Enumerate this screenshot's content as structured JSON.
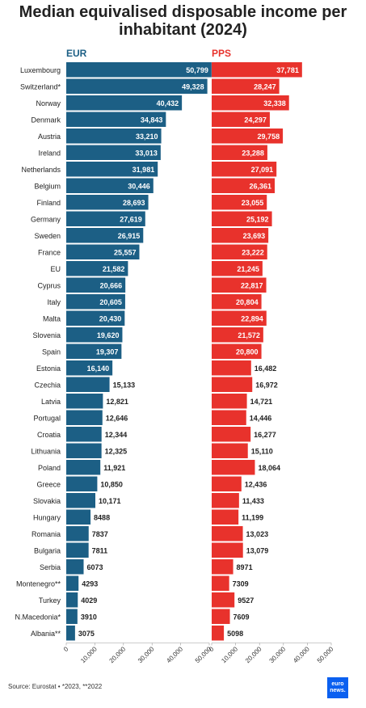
{
  "title": "Median equivalised disposable income per inhabitant (2024)",
  "source": "Source: Eurostat • *2023, **2022",
  "logo_text": "euro news.",
  "colors": {
    "eur": "#1c5f85",
    "pps": "#e8322c",
    "logo": "#0b60f0"
  },
  "chart_data": [
    {
      "type": "bar",
      "orientation": "horizontal",
      "panel_label": "EUR",
      "xlim": [
        0,
        50000
      ],
      "xticks": [
        "0",
        "10,000",
        "20,000",
        "30,000",
        "40,000",
        "50,000"
      ],
      "categories": [
        "Luxembourg",
        "Switzerland*",
        "Norway",
        "Denmark",
        "Austria",
        "Ireland",
        "Netherlands",
        "Belgium",
        "Finland",
        "Germany",
        "Sweden",
        "France",
        "EU",
        "Cyprus",
        "Italy",
        "Malta",
        "Slovenia",
        "Spain",
        "Estonia",
        "Czechia",
        "Latvia",
        "Portugal",
        "Croatia",
        "Lithuania",
        "Poland",
        "Greece",
        "Slovakia",
        "Hungary",
        "Romania",
        "Bulgaria",
        "Serbia",
        "Montenegro**",
        "Turkey",
        "N.Macedonia*",
        "Albania**"
      ],
      "values": [
        50799,
        49328,
        40432,
        34843,
        33210,
        33013,
        31981,
        30446,
        28693,
        27619,
        26915,
        25557,
        21582,
        20666,
        20605,
        20430,
        19620,
        19307,
        16140,
        15133,
        12821,
        12646,
        12344,
        12325,
        11921,
        10850,
        10171,
        8488,
        7837,
        7811,
        6073,
        4293,
        4029,
        3910,
        3075
      ],
      "labels": [
        "50,799",
        "49,328",
        "40,432",
        "34,843",
        "33,210",
        "33,013",
        "31,981",
        "30,446",
        "28,693",
        "27,619",
        "26,915",
        "25,557",
        "21,582",
        "20,666",
        "20,605",
        "20,430",
        "19,620",
        "19,307",
        "16,140",
        "15,133",
        "12,821",
        "12,646",
        "12,344",
        "12,325",
        "11,921",
        "10,850",
        "10,171",
        "8488",
        "7837",
        "7811",
        "6073",
        "4293",
        "4029",
        "3910",
        "3075"
      ]
    },
    {
      "type": "bar",
      "orientation": "horizontal",
      "panel_label": "PPS",
      "xlim": [
        0,
        50000
      ],
      "xticks": [
        "0",
        "10,000",
        "20,000",
        "30,000",
        "40,000",
        "50,000"
      ],
      "values": [
        37781,
        28247,
        32338,
        24297,
        29758,
        23288,
        27091,
        26361,
        23055,
        25192,
        23693,
        23222,
        21245,
        22817,
        20804,
        22894,
        21572,
        20800,
        16482,
        16972,
        14721,
        14446,
        16277,
        15110,
        18064,
        12436,
        11433,
        11199,
        13023,
        13079,
        8971,
        7309,
        9527,
        7609,
        5098
      ],
      "labels": [
        "37,781",
        "28,247",
        "32,338",
        "24,297",
        "29,758",
        "23,288",
        "27,091",
        "26,361",
        "23,055",
        "25,192",
        "23,693",
        "23,222",
        "21,245",
        "22,817",
        "20,804",
        "22,894",
        "21,572",
        "20,800",
        "16,482",
        "16,972",
        "14,721",
        "14,446",
        "16,277",
        "15,110",
        "18,064",
        "12,436",
        "11,433",
        "11,199",
        "13,023",
        "13,079",
        "8971",
        "7309",
        "9527",
        "7609",
        "5098"
      ]
    }
  ]
}
